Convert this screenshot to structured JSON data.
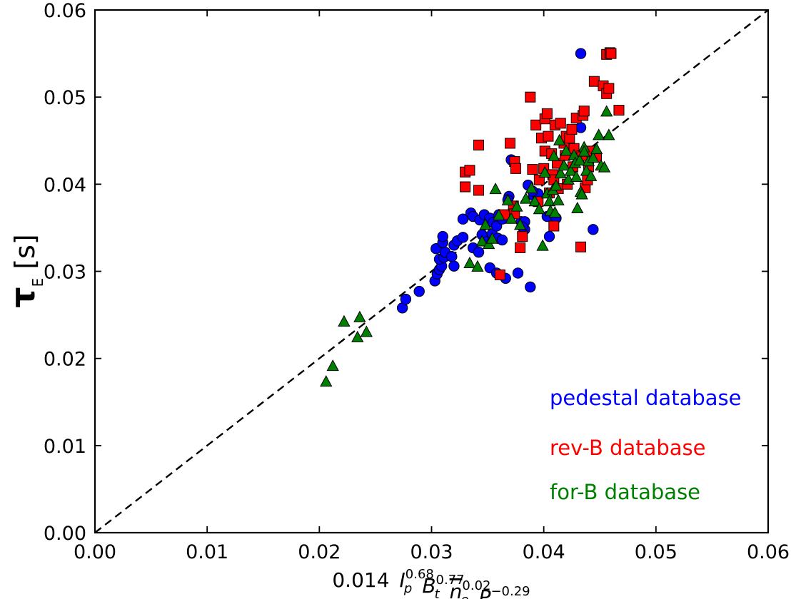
{
  "chart_data": {
    "type": "scatter",
    "xlim": [
      0.0,
      0.06
    ],
    "ylim": [
      0.0,
      0.06
    ],
    "xticks": [
      "0.00",
      "0.01",
      "0.02",
      "0.03",
      "0.04",
      "0.05",
      "0.06"
    ],
    "yticks": [
      "0.00",
      "0.01",
      "0.02",
      "0.03",
      "0.04",
      "0.05",
      "0.06"
    ],
    "xlabel": {
      "prefix": "0.014",
      "terms": [
        {
          "base": "I",
          "sub": "p",
          "sup": "0.68"
        },
        {
          "base": "B",
          "sub": "t",
          "sup": "0.77"
        },
        {
          "base": "n",
          "sub": "e",
          "sup": "0.02",
          "overline": true
        },
        {
          "base": "P",
          "sub": "loss",
          "sup": "−0.29"
        }
      ]
    },
    "ylabel": {
      "base": "τ",
      "sub": "E",
      "unit": "[s]"
    },
    "reference_line": {
      "style": "dashed",
      "from": [
        0.0,
        0.0
      ],
      "to": [
        0.06,
        0.06
      ]
    },
    "legend_placement": "lower-right",
    "series": [
      {
        "name": "pedestal database",
        "color": "#0000ff",
        "marker": "circle",
        "points": [
          [
            0.0274,
            0.0258
          ],
          [
            0.0277,
            0.0268
          ],
          [
            0.0289,
            0.0277
          ],
          [
            0.0303,
            0.0289
          ],
          [
            0.0305,
            0.0297
          ],
          [
            0.0307,
            0.0302
          ],
          [
            0.0309,
            0.0306
          ],
          [
            0.0307,
            0.0314
          ],
          [
            0.0311,
            0.0316
          ],
          [
            0.0312,
            0.0322
          ],
          [
            0.0304,
            0.0326
          ],
          [
            0.031,
            0.0333
          ],
          [
            0.031,
            0.034
          ],
          [
            0.0318,
            0.0317
          ],
          [
            0.032,
            0.0306
          ],
          [
            0.032,
            0.033
          ],
          [
            0.0323,
            0.0335
          ],
          [
            0.0328,
            0.0339
          ],
          [
            0.0328,
            0.036
          ],
          [
            0.0335,
            0.0367
          ],
          [
            0.0337,
            0.0363
          ],
          [
            0.0337,
            0.0327
          ],
          [
            0.0342,
            0.0322
          ],
          [
            0.0343,
            0.0359
          ],
          [
            0.0345,
            0.0342
          ],
          [
            0.0347,
            0.0365
          ],
          [
            0.0349,
            0.0334
          ],
          [
            0.0352,
            0.0361
          ],
          [
            0.0354,
            0.0343
          ],
          [
            0.0355,
            0.0356
          ],
          [
            0.0358,
            0.0352
          ],
          [
            0.0359,
            0.0338
          ],
          [
            0.036,
            0.0365
          ],
          [
            0.0363,
            0.0336
          ],
          [
            0.0352,
            0.0304
          ],
          [
            0.0358,
            0.0298
          ],
          [
            0.0366,
            0.0292
          ],
          [
            0.0373,
            0.0371
          ],
          [
            0.0369,
            0.0386
          ],
          [
            0.0377,
            0.0298
          ],
          [
            0.038,
            0.0357
          ],
          [
            0.0383,
            0.0348
          ],
          [
            0.0383,
            0.0357
          ],
          [
            0.0388,
            0.0282
          ],
          [
            0.0386,
            0.0399
          ],
          [
            0.0391,
            0.0387
          ],
          [
            0.0395,
            0.0389
          ],
          [
            0.0368,
            0.0382
          ],
          [
            0.0381,
            0.0351
          ],
          [
            0.039,
            0.0392
          ],
          [
            0.0405,
            0.034
          ],
          [
            0.0403,
            0.0363
          ],
          [
            0.0411,
            0.0361
          ],
          [
            0.0371,
            0.0428
          ],
          [
            0.0433,
            0.055
          ],
          [
            0.0433,
            0.0465
          ],
          [
            0.0444,
            0.0348
          ],
          [
            0.0363,
            0.036
          ]
        ]
      },
      {
        "name": "rev-B database",
        "color": "#ff0000",
        "marker": "square",
        "points": [
          [
            0.033,
            0.0414
          ],
          [
            0.0334,
            0.0416
          ],
          [
            0.033,
            0.0397
          ],
          [
            0.0342,
            0.0393
          ],
          [
            0.0342,
            0.0445
          ],
          [
            0.0361,
            0.0296
          ],
          [
            0.0365,
            0.0365
          ],
          [
            0.037,
            0.0447
          ],
          [
            0.0373,
            0.0375
          ],
          [
            0.0374,
            0.0426
          ],
          [
            0.0375,
            0.0418
          ],
          [
            0.0374,
            0.0366
          ],
          [
            0.0381,
            0.034
          ],
          [
            0.0379,
            0.0327
          ],
          [
            0.0388,
            0.05
          ],
          [
            0.039,
            0.0417
          ],
          [
            0.0393,
            0.0468
          ],
          [
            0.0395,
            0.038
          ],
          [
            0.0396,
            0.0405
          ],
          [
            0.0398,
            0.0453
          ],
          [
            0.04,
            0.0418
          ],
          [
            0.0401,
            0.0475
          ],
          [
            0.0401,
            0.0438
          ],
          [
            0.0403,
            0.0481
          ],
          [
            0.0404,
            0.0455
          ],
          [
            0.0405,
            0.039
          ],
          [
            0.0407,
            0.0435
          ],
          [
            0.0408,
            0.0411
          ],
          [
            0.0409,
            0.0405
          ],
          [
            0.0409,
            0.0352
          ],
          [
            0.041,
            0.0468
          ],
          [
            0.0412,
            0.0424
          ],
          [
            0.0413,
            0.0395
          ],
          [
            0.0415,
            0.047
          ],
          [
            0.0418,
            0.0447
          ],
          [
            0.0419,
            0.0433
          ],
          [
            0.042,
            0.0455
          ],
          [
            0.0421,
            0.04
          ],
          [
            0.0423,
            0.0453
          ],
          [
            0.0425,
            0.0463
          ],
          [
            0.0426,
            0.042
          ],
          [
            0.0427,
            0.0441
          ],
          [
            0.0429,
            0.0476
          ],
          [
            0.0431,
            0.0428
          ],
          [
            0.0433,
            0.0328
          ],
          [
            0.0434,
            0.0433
          ],
          [
            0.0435,
            0.0479
          ],
          [
            0.0436,
            0.0484
          ],
          [
            0.0437,
            0.0396
          ],
          [
            0.0439,
            0.0405
          ],
          [
            0.0442,
            0.0438
          ],
          [
            0.0445,
            0.0518
          ],
          [
            0.0447,
            0.0431
          ],
          [
            0.0453,
            0.0513
          ],
          [
            0.0456,
            0.0504
          ],
          [
            0.0456,
            0.0549
          ],
          [
            0.0458,
            0.051
          ],
          [
            0.0459,
            0.0551
          ],
          [
            0.046,
            0.055
          ],
          [
            0.0467,
            0.0485
          ],
          [
            0.044,
            0.042
          ]
        ]
      },
      {
        "name": "for-B database",
        "color": "#008000",
        "marker": "triangle",
        "points": [
          [
            0.0206,
            0.0173
          ],
          [
            0.0212,
            0.0191
          ],
          [
            0.0222,
            0.0242
          ],
          [
            0.0234,
            0.0224
          ],
          [
            0.0236,
            0.0247
          ],
          [
            0.0242,
            0.023
          ],
          [
            0.0334,
            0.0309
          ],
          [
            0.0341,
            0.0305
          ],
          [
            0.0345,
            0.0334
          ],
          [
            0.0348,
            0.0353
          ],
          [
            0.0351,
            0.0331
          ],
          [
            0.0354,
            0.0337
          ],
          [
            0.0357,
            0.0394
          ],
          [
            0.036,
            0.0364
          ],
          [
            0.0368,
            0.0381
          ],
          [
            0.0371,
            0.036
          ],
          [
            0.0376,
            0.0374
          ],
          [
            0.0379,
            0.0353
          ],
          [
            0.0384,
            0.0383
          ],
          [
            0.0389,
            0.0395
          ],
          [
            0.0392,
            0.038
          ],
          [
            0.0396,
            0.0371
          ],
          [
            0.0399,
            0.0329
          ],
          [
            0.0401,
            0.0413
          ],
          [
            0.0403,
            0.0389
          ],
          [
            0.0405,
            0.038
          ],
          [
            0.0406,
            0.0369
          ],
          [
            0.0408,
            0.0393
          ],
          [
            0.0409,
            0.0432
          ],
          [
            0.041,
            0.0367
          ],
          [
            0.0411,
            0.0398
          ],
          [
            0.0413,
            0.0381
          ],
          [
            0.0414,
            0.045
          ],
          [
            0.0415,
            0.0412
          ],
          [
            0.0418,
            0.0421
          ],
          [
            0.042,
            0.0438
          ],
          [
            0.0422,
            0.0405
          ],
          [
            0.0424,
            0.0415
          ],
          [
            0.0427,
            0.0433
          ],
          [
            0.0428,
            0.0424
          ],
          [
            0.0429,
            0.0408
          ],
          [
            0.043,
            0.0372
          ],
          [
            0.0432,
            0.0427
          ],
          [
            0.0433,
            0.0391
          ],
          [
            0.0434,
            0.0388
          ],
          [
            0.0436,
            0.0442
          ],
          [
            0.0438,
            0.0415
          ],
          [
            0.044,
            0.0426
          ],
          [
            0.0442,
            0.0409
          ],
          [
            0.0444,
            0.043
          ],
          [
            0.0447,
            0.044
          ],
          [
            0.0449,
            0.0456
          ],
          [
            0.0451,
            0.0421
          ],
          [
            0.0454,
            0.0419
          ],
          [
            0.0456,
            0.0483
          ],
          [
            0.0458,
            0.0456
          ],
          [
            0.0436,
            0.0437
          ]
        ]
      }
    ]
  }
}
